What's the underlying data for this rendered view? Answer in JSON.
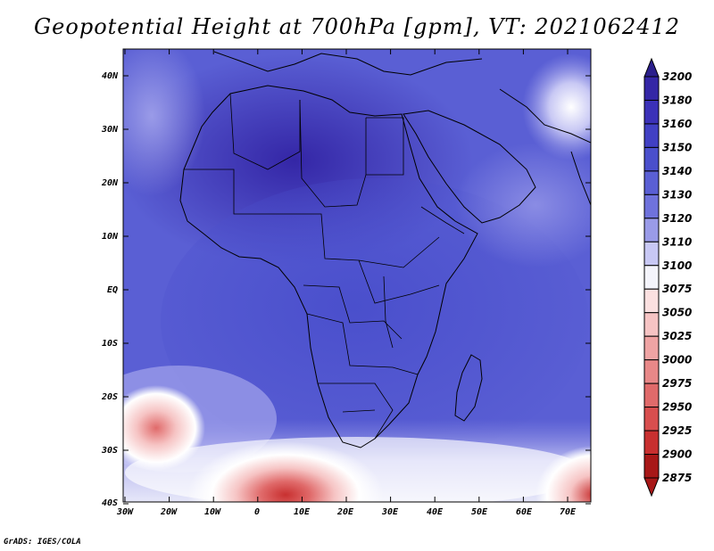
{
  "title": "Geopotential Height at 700hPa [gpm], VT: 2021062412",
  "credit": "GrADS: IGES/COLA",
  "map": {
    "lat_labels": [
      "40N",
      "30N",
      "20N",
      "10N",
      "EQ",
      "10S",
      "20S",
      "30S",
      "40S"
    ],
    "lon_labels": [
      "30W",
      "20W",
      "10W",
      "0",
      "10E",
      "20E",
      "30E",
      "40E",
      "50E",
      "60E",
      "70E"
    ]
  },
  "colorbar": {
    "levels": [
      "3200",
      "3180",
      "3160",
      "3150",
      "3140",
      "3130",
      "3120",
      "3110",
      "3100",
      "3075",
      "3050",
      "3025",
      "3000",
      "2975",
      "2950",
      "2925",
      "2900",
      "2875"
    ],
    "colors": [
      "#2b1f8c",
      "#3426a6",
      "#3b31b8",
      "#4140c4",
      "#4a4fcc",
      "#5a5fd4",
      "#6f72dc",
      "#9a9be8",
      "#c8c8f4",
      "#f4f4fb",
      "#fbe0e0",
      "#f6c4c4",
      "#efa4a4",
      "#e88888",
      "#e06a6a",
      "#d84e4e",
      "#c83030",
      "#a81818"
    ]
  }
}
